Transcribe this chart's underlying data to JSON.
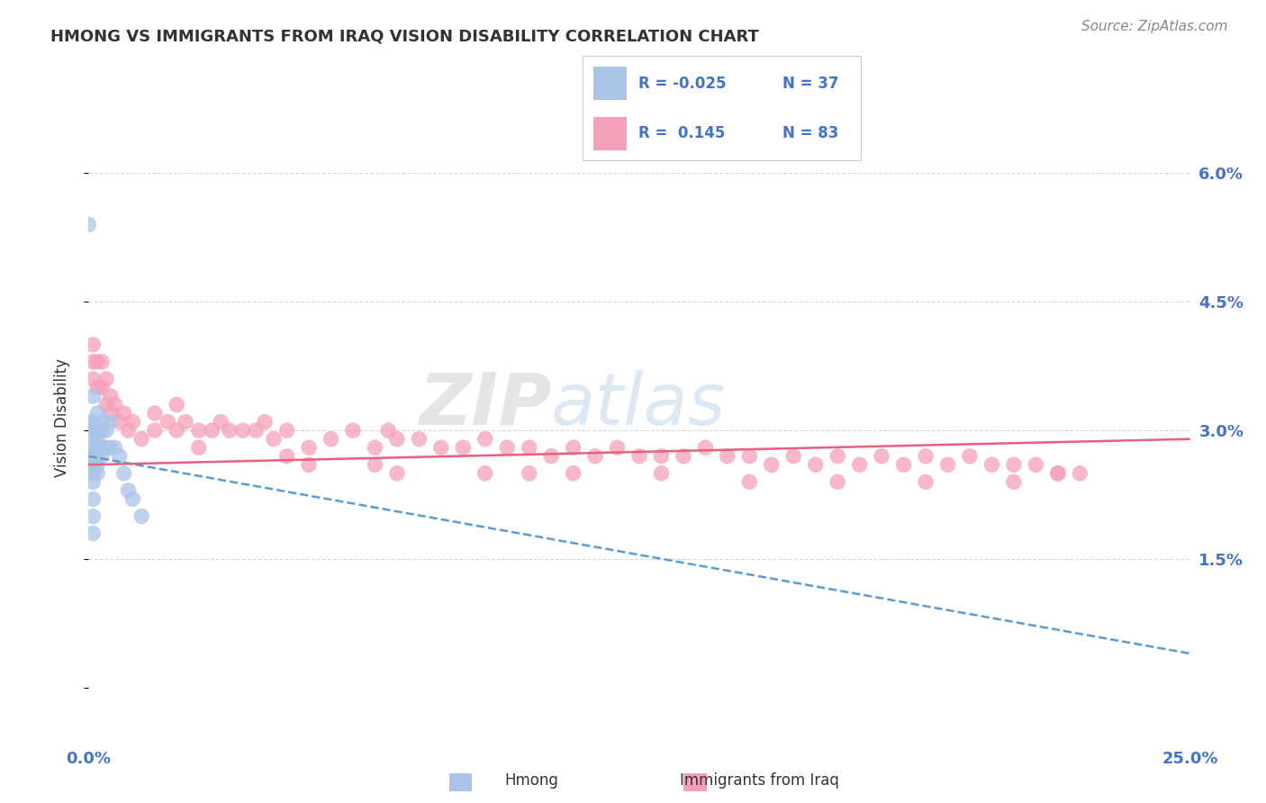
{
  "title": "HMONG VS IMMIGRANTS FROM IRAQ VISION DISABILITY CORRELATION CHART",
  "source": "Source: ZipAtlas.com",
  "ylabel": "Vision Disability",
  "yticks": [
    0.0,
    0.015,
    0.03,
    0.045,
    0.06
  ],
  "ytick_labels": [
    "",
    "1.5%",
    "3.0%",
    "4.5%",
    "6.0%"
  ],
  "xlim": [
    0.0,
    0.25
  ],
  "ylim": [
    -0.005,
    0.068
  ],
  "watermark_zip": "ZIP",
  "watermark_atlas": "atlas",
  "legend_r1": "-0.025",
  "legend_n1": "37",
  "legend_r2": "0.145",
  "legend_n2": "83",
  "series1_color": "#aac4e8",
  "series2_color": "#f5a0b8",
  "trendline1_color": "#5b9bd5",
  "trendline2_color": "#e8607a",
  "hmong_x": [
    0.0,
    0.0,
    0.001,
    0.001,
    0.001,
    0.001,
    0.001,
    0.001,
    0.001,
    0.001,
    0.001,
    0.001,
    0.001,
    0.001,
    0.001,
    0.001,
    0.002,
    0.002,
    0.002,
    0.002,
    0.002,
    0.002,
    0.002,
    0.003,
    0.003,
    0.003,
    0.003,
    0.004,
    0.004,
    0.005,
    0.005,
    0.006,
    0.007,
    0.008,
    0.009,
    0.01,
    0.012
  ],
  "hmong_y": [
    0.054,
    0.031,
    0.034,
    0.031,
    0.03,
    0.029,
    0.028,
    0.027,
    0.027,
    0.026,
    0.025,
    0.025,
    0.024,
    0.022,
    0.02,
    0.018,
    0.032,
    0.03,
    0.029,
    0.028,
    0.027,
    0.026,
    0.025,
    0.031,
    0.03,
    0.028,
    0.027,
    0.03,
    0.028,
    0.031,
    0.028,
    0.028,
    0.027,
    0.025,
    0.023,
    0.022,
    0.02
  ],
  "iraq_x": [
    0.001,
    0.001,
    0.001,
    0.002,
    0.002,
    0.003,
    0.003,
    0.004,
    0.004,
    0.005,
    0.005,
    0.006,
    0.007,
    0.008,
    0.009,
    0.01,
    0.012,
    0.015,
    0.015,
    0.018,
    0.02,
    0.02,
    0.022,
    0.025,
    0.028,
    0.03,
    0.032,
    0.035,
    0.038,
    0.04,
    0.042,
    0.045,
    0.05,
    0.055,
    0.06,
    0.065,
    0.068,
    0.07,
    0.075,
    0.08,
    0.085,
    0.09,
    0.095,
    0.1,
    0.105,
    0.11,
    0.115,
    0.12,
    0.125,
    0.13,
    0.135,
    0.14,
    0.145,
    0.15,
    0.155,
    0.16,
    0.165,
    0.17,
    0.175,
    0.18,
    0.185,
    0.19,
    0.195,
    0.2,
    0.205,
    0.21,
    0.215,
    0.22,
    0.225,
    0.05,
    0.07,
    0.09,
    0.11,
    0.13,
    0.15,
    0.17,
    0.19,
    0.21,
    0.025,
    0.045,
    0.065,
    0.1,
    0.22
  ],
  "iraq_y": [
    0.04,
    0.038,
    0.036,
    0.038,
    0.035,
    0.038,
    0.035,
    0.036,
    0.033,
    0.034,
    0.032,
    0.033,
    0.031,
    0.032,
    0.03,
    0.031,
    0.029,
    0.032,
    0.03,
    0.031,
    0.033,
    0.03,
    0.031,
    0.03,
    0.03,
    0.031,
    0.03,
    0.03,
    0.03,
    0.031,
    0.029,
    0.03,
    0.028,
    0.029,
    0.03,
    0.028,
    0.03,
    0.029,
    0.029,
    0.028,
    0.028,
    0.029,
    0.028,
    0.028,
    0.027,
    0.028,
    0.027,
    0.028,
    0.027,
    0.027,
    0.027,
    0.028,
    0.027,
    0.027,
    0.026,
    0.027,
    0.026,
    0.027,
    0.026,
    0.027,
    0.026,
    0.027,
    0.026,
    0.027,
    0.026,
    0.026,
    0.026,
    0.025,
    0.025,
    0.026,
    0.025,
    0.025,
    0.025,
    0.025,
    0.024,
    0.024,
    0.024,
    0.024,
    0.028,
    0.027,
    0.026,
    0.025,
    0.025
  ],
  "hmong_trend_x0": 0.0,
  "hmong_trend_y0": 0.027,
  "hmong_trend_x1": 0.25,
  "hmong_trend_y1": 0.004,
  "iraq_trend_x0": 0.0,
  "iraq_trend_y0": 0.026,
  "iraq_trend_x1": 0.25,
  "iraq_trend_y1": 0.029,
  "background_color": "#ffffff",
  "grid_color": "#cccccc",
  "title_color": "#333333",
  "axis_label_color": "#333333",
  "tick_label_color": "#4472c4",
  "source_color": "#888888"
}
